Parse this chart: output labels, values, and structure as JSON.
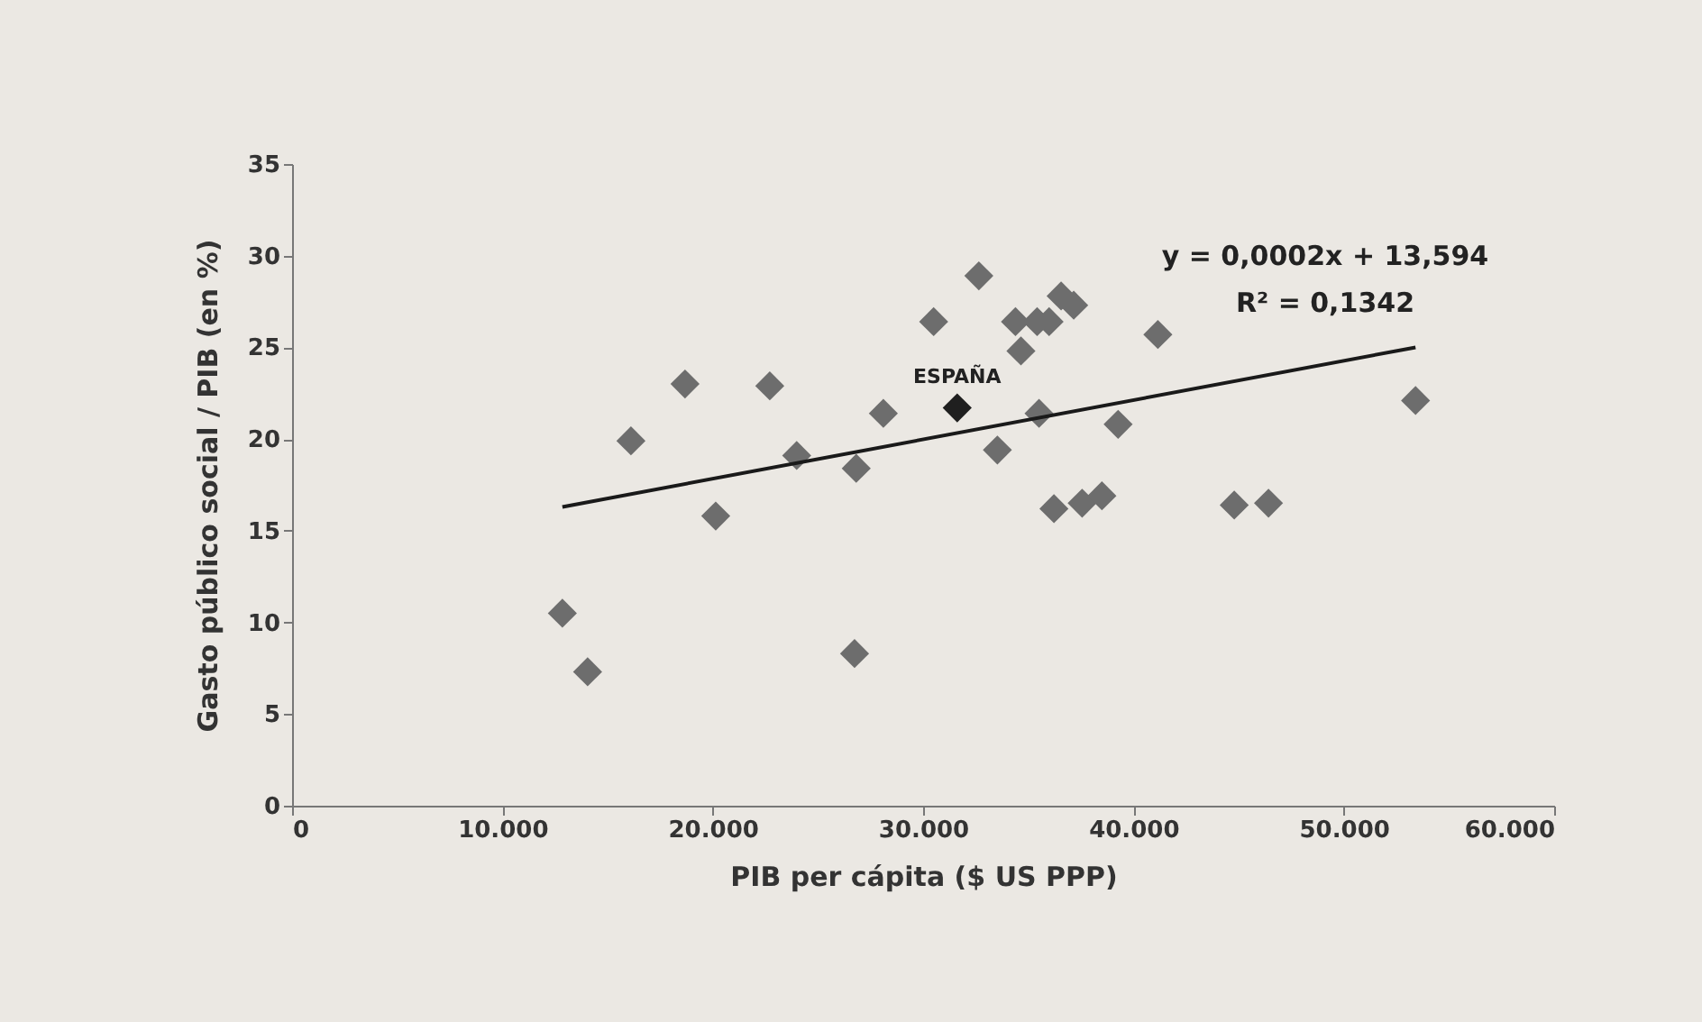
{
  "chart_data": {
    "type": "scatter",
    "xlabel": "PIB  per cápita  ($ US PPP)",
    "ylabel": "Gasto público social  / PIB   (en %)",
    "xlim": [
      0,
      60000
    ],
    "xticks": [
      {
        "value": 0,
        "label": "0"
      },
      {
        "value": 10000,
        "label": "10.000"
      },
      {
        "value": 20000,
        "label": "20.000"
      },
      {
        "value": 30000,
        "label": "30.000"
      },
      {
        "value": 40000,
        "label": "40.000"
      },
      {
        "value": 50000,
        "label": "50.000"
      },
      {
        "value": 60000,
        "label": "60.000"
      }
    ],
    "ylim": [
      0,
      35
    ],
    "yticks": [
      0,
      5,
      10,
      15,
      20,
      25,
      30,
      35
    ],
    "grid": false,
    "legend": false,
    "marker": "diamond",
    "annotations": [
      "y = 0,0002x + 13,594",
      "R² = 0,1342"
    ],
    "series": [
      {
        "color": "#6d6d6d",
        "x": [
          12850,
          14050,
          16110,
          18680,
          20140,
          22710,
          23990,
          26820,
          26740,
          28110,
          30500,
          32650,
          34390,
          35420,
          35990,
          36560,
          37160,
          34650,
          41160,
          53410,
          35510,
          39270,
          33530,
          36220,
          37560,
          38500,
          44790,
          46420
        ],
        "values": [
          10.5,
          7.3,
          19.9,
          23.0,
          15.8,
          22.9,
          19.1,
          18.4,
          8.3,
          21.4,
          26.4,
          28.9,
          26.4,
          26.4,
          26.4,
          27.8,
          27.3,
          24.8,
          25.7,
          22.1,
          21.4,
          20.8,
          19.4,
          16.2,
          16.5,
          16.9,
          16.4,
          16.5
        ]
      },
      {
        "type": "scatter",
        "name": "ESPAÑA",
        "color": "#1f1f1f",
        "x": [
          31620
        ],
        "values": [
          21.7
        ]
      },
      {
        "type": "line",
        "color": "#1a1a1a",
        "line_style": "solid",
        "marker": "none",
        "x": [
          12850,
          53410
        ],
        "values": [
          16.3,
          25.0
        ]
      }
    ]
  }
}
